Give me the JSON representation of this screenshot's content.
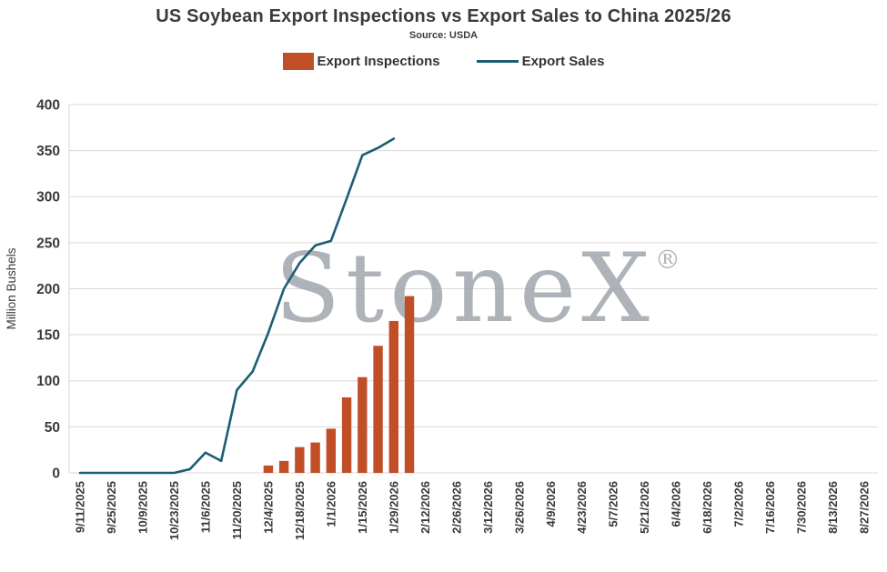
{
  "title": "US Soybean Export Inspections vs Export Sales to China 2025/26",
  "source": "Source: USDA",
  "legend": {
    "inspections": {
      "label": "Export Inspections",
      "color": "#C04F28"
    },
    "sales": {
      "label": "Export Sales",
      "color": "#1B5E74"
    }
  },
  "watermark": {
    "text": "StoneX",
    "mark": "®",
    "color": "#9BA1A8"
  },
  "chart_data": {
    "type": "bar+line",
    "title": "US Soybean Export Inspections vs Export Sales to China 2025/26",
    "ylabel": "Million Bushels",
    "ylim": [
      0,
      400
    ],
    "yticks": [
      0,
      50,
      100,
      150,
      200,
      250,
      300,
      350,
      400
    ],
    "grid": "horizontal",
    "legend_position": "top",
    "x_labels_shown_every": 2,
    "x": [
      "9/11/2025",
      "9/18/2025",
      "9/25/2025",
      "10/2/2025",
      "10/9/2025",
      "10/16/2025",
      "10/23/2025",
      "10/30/2025",
      "11/6/2025",
      "11/13/2025",
      "11/20/2025",
      "11/27/2025",
      "12/4/2025",
      "12/11/2025",
      "12/18/2025",
      "12/25/2025",
      "1/1/2026",
      "1/8/2026",
      "1/15/2026",
      "1/22/2026",
      "1/29/2026",
      "2/5/2026",
      "2/12/2026",
      "2/19/2026",
      "2/26/2026",
      "3/5/2026",
      "3/12/2026",
      "3/19/2026",
      "3/26/2026",
      "4/2/2026",
      "4/9/2026",
      "4/16/2026",
      "4/23/2026",
      "4/30/2026",
      "5/7/2026",
      "5/14/2026",
      "5/21/2026",
      "5/28/2026",
      "6/4/2026",
      "6/11/2026",
      "6/18/2026",
      "6/25/2026",
      "7/2/2026",
      "7/9/2026",
      "7/16/2026",
      "7/23/2026",
      "7/30/2026",
      "8/6/2026",
      "8/13/2026",
      "8/20/2026",
      "8/27/2026"
    ],
    "series": [
      {
        "name": "Export Inspections",
        "type": "bar",
        "color": "#C04F28",
        "values": [
          null,
          null,
          null,
          null,
          null,
          null,
          null,
          null,
          null,
          null,
          null,
          null,
          8,
          13,
          28,
          33,
          48,
          82,
          104,
          138,
          165,
          192,
          null,
          null,
          null,
          null,
          null,
          null,
          null,
          null,
          null,
          null,
          null,
          null,
          null,
          null,
          null,
          null,
          null,
          null,
          null,
          null,
          null,
          null,
          null,
          null,
          null,
          null,
          null,
          null,
          null
        ]
      },
      {
        "name": "Export Sales",
        "type": "line",
        "color": "#1B5E74",
        "values": [
          0,
          0,
          0,
          0,
          0,
          0,
          0,
          4,
          22,
          13,
          90,
          110,
          152,
          200,
          228,
          247,
          252,
          298,
          345,
          353,
          363,
          null,
          null,
          null,
          null,
          null,
          null,
          null,
          null,
          null,
          null,
          null,
          null,
          null,
          null,
          null,
          null,
          null,
          null,
          null,
          null,
          null,
          null,
          null,
          null,
          null,
          null,
          null,
          null,
          null,
          null
        ]
      }
    ]
  }
}
